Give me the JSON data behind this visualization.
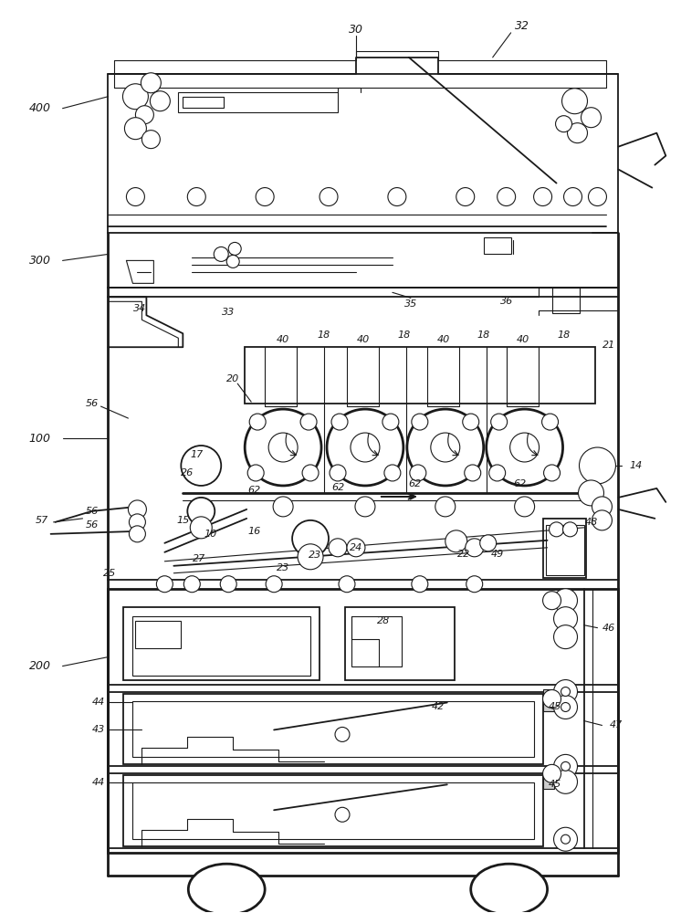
{
  "bg_color": "#ffffff",
  "line_color": "#1a1a1a",
  "label_color": "#2a2a2a",
  "fig_width": 7.46,
  "fig_height": 10.0,
  "dpi": 100
}
